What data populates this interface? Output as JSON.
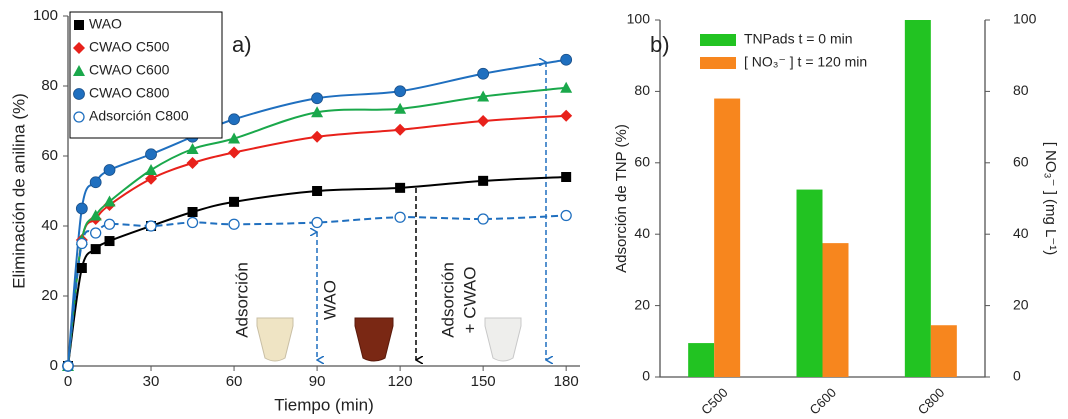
{
  "chart_data": [
    {
      "type": "line",
      "label": "a)",
      "x_label": "Tiempo (min)",
      "y_label": "Eliminación de anilina (%)",
      "x": [
        0,
        5,
        10,
        15,
        30,
        45,
        60,
        90,
        120,
        150,
        180
      ],
      "xlim": [
        0,
        185
      ],
      "xticks": [
        0,
        30,
        60,
        90,
        120,
        150,
        180
      ],
      "ylim": [
        0,
        100
      ],
      "yticks": [
        0,
        20,
        40,
        60,
        80,
        100
      ],
      "legend": "upper left",
      "series": [
        {
          "name": "WAO",
          "color": "#000000",
          "marker": "square",
          "values": [
            0,
            28,
            33.4,
            35.7,
            40,
            44,
            46.9,
            50,
            50.9,
            52.9,
            54
          ]
        },
        {
          "name": "CWAO C500",
          "color": "#e8211b",
          "marker": "diamond",
          "values": [
            0,
            36,
            42,
            46,
            53.5,
            58,
            61,
            65.5,
            67.5,
            70,
            71.5
          ]
        },
        {
          "name": "CWAO C600",
          "color": "#1aa84b",
          "marker": "triangle",
          "values": [
            0,
            36,
            43,
            47,
            56,
            62,
            65,
            72.5,
            73.5,
            77,
            79.5
          ]
        },
        {
          "name": "CWAO C800",
          "color": "#1f6fbf",
          "marker": "circle",
          "values": [
            0,
            45,
            52.5,
            56,
            60.5,
            65.5,
            70.5,
            76.5,
            78.5,
            83.5,
            87.5
          ]
        },
        {
          "name": "Adsorción C800",
          "color": "#1f6fbf",
          "marker": "circle-open",
          "dashed": true,
          "values": [
            0,
            35,
            38,
            40.5,
            40,
            41,
            40.5,
            41,
            42.5,
            42,
            43
          ]
        }
      ],
      "annotations": [
        "Adsorción",
        "WAO",
        "Adsorción",
        "+ CWAO"
      ]
    },
    {
      "type": "bar",
      "label": "b)",
      "categories": [
        "C500",
        "C600",
        "C800"
      ],
      "y_label": "Adsorción de TNP (%)",
      "y2_label": "[ NO₃⁻ ] (mg L⁻¹)",
      "ylim": [
        0,
        100
      ],
      "yticks": [
        0,
        20,
        40,
        60,
        80,
        100
      ],
      "y2lim": [
        0,
        100
      ],
      "y2ticks": [
        0,
        20,
        40,
        60,
        80,
        100
      ],
      "legend": "upper left",
      "series": [
        {
          "name": "TNPads t = 0 min",
          "color": "#22c322",
          "values": [
            9.5,
            52.5,
            100
          ]
        },
        {
          "name": "[ NO₃⁻ ] t = 120 min",
          "color": "#f7861e",
          "axis": "y2",
          "values": [
            78,
            37.5,
            14.5
          ]
        }
      ]
    }
  ]
}
